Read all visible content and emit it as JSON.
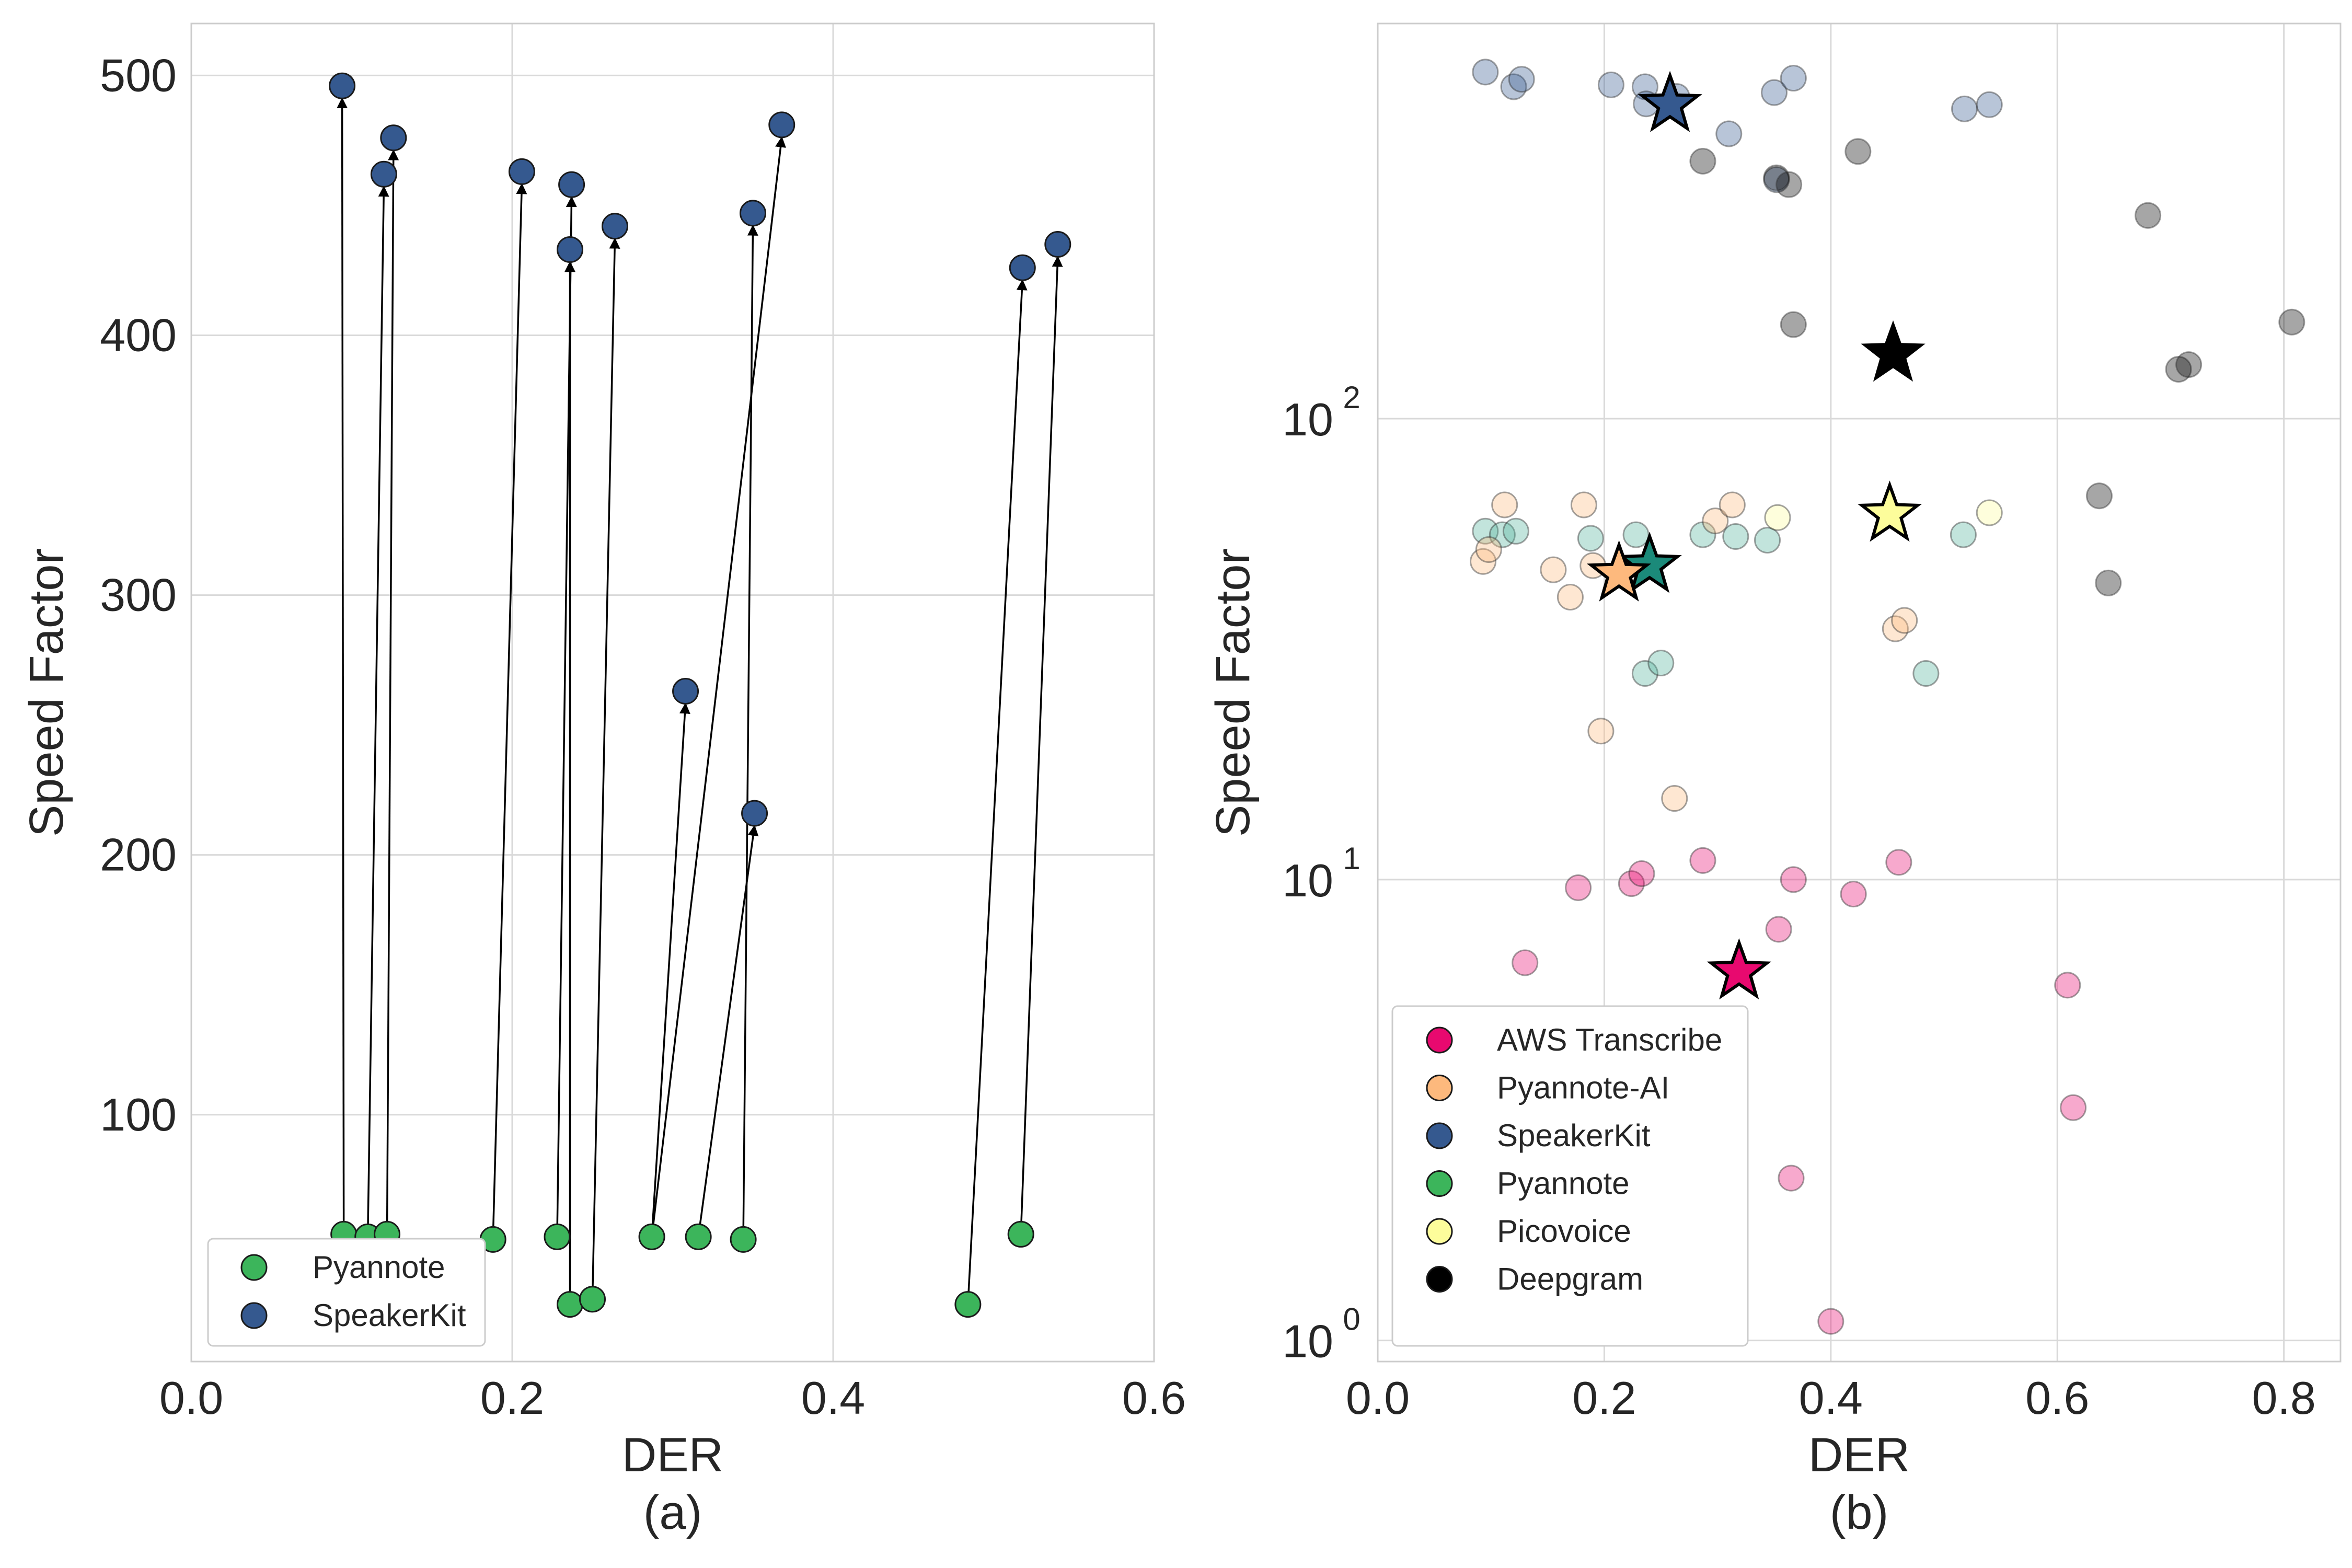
{
  "chart_data": [
    {
      "panel_label": "(a)",
      "type": "scatter",
      "xlabel": "DER",
      "ylabel": "Speed Factor",
      "xlim": [
        0.0,
        0.6
      ],
      "ylim": [
        5,
        520
      ],
      "x_ticks": [
        0.0,
        0.2,
        0.4,
        0.6
      ],
      "x_tick_labels": [
        "0.0",
        "0.2",
        "0.4",
        "0.6"
      ],
      "y_ticks": [
        100,
        200,
        300,
        400,
        500
      ],
      "y_tick_labels": [
        "100",
        "200",
        "300",
        "400",
        "500"
      ],
      "grid": true,
      "legend": {
        "position": "lower-left",
        "entries": [
          {
            "label": "Pyannote",
            "color": "#3cb55b"
          },
          {
            "label": "SpeakerKit",
            "color": "#35598f"
          }
        ]
      },
      "series": [
        {
          "name": "Pyannote",
          "color": "#3cb55b",
          "points": [
            [
              0.095,
              54
            ],
            [
              0.11,
              53
            ],
            [
              0.122,
              54
            ],
            [
              0.188,
              52
            ],
            [
              0.228,
              53
            ],
            [
              0.236,
              27
            ],
            [
              0.25,
              29
            ],
            [
              0.287,
              53
            ],
            [
              0.316,
              53
            ],
            [
              0.344,
              52
            ],
            [
              0.484,
              27
            ],
            [
              0.517,
              54
            ]
          ]
        },
        {
          "name": "SpeakerKit",
          "color": "#35598f",
          "points": [
            [
              0.094,
              496
            ],
            [
              0.12,
              462
            ],
            [
              0.126,
              476
            ],
            [
              0.206,
              463
            ],
            [
              0.236,
              433
            ],
            [
              0.237,
              458
            ],
            [
              0.264,
              442
            ],
            [
              0.308,
              263
            ],
            [
              0.35,
              447
            ],
            [
              0.351,
              216
            ],
            [
              0.368,
              481
            ],
            [
              0.518,
              426
            ],
            [
              0.54,
              435
            ]
          ]
        }
      ],
      "arrows": [
        {
          "from": [
            0.095,
            54
          ],
          "to": [
            0.094,
            496
          ]
        },
        {
          "from": [
            0.11,
            53
          ],
          "to": [
            0.12,
            462
          ]
        },
        {
          "from": [
            0.122,
            54
          ],
          "to": [
            0.126,
            476
          ]
        },
        {
          "from": [
            0.188,
            52
          ],
          "to": [
            0.206,
            463
          ]
        },
        {
          "from": [
            0.228,
            53
          ],
          "to": [
            0.237,
            458
          ]
        },
        {
          "from": [
            0.236,
            27
          ],
          "to": [
            0.236,
            433
          ]
        },
        {
          "from": [
            0.25,
            29
          ],
          "to": [
            0.264,
            442
          ]
        },
        {
          "from": [
            0.287,
            53
          ],
          "to": [
            0.308,
            263
          ]
        },
        {
          "from": [
            0.287,
            53
          ],
          "to": [
            0.368,
            481
          ]
        },
        {
          "from": [
            0.316,
            53
          ],
          "to": [
            0.351,
            216
          ]
        },
        {
          "from": [
            0.344,
            52
          ],
          "to": [
            0.35,
            447
          ]
        },
        {
          "from": [
            0.484,
            27
          ],
          "to": [
            0.518,
            426
          ]
        },
        {
          "from": [
            0.517,
            54
          ],
          "to": [
            0.54,
            435
          ]
        }
      ]
    },
    {
      "panel_label": "(b)",
      "type": "scatter",
      "xlabel": "DER",
      "ylabel": "Speed Factor",
      "yscale": "log",
      "xlim": [
        0.0,
        0.85
      ],
      "ylim": [
        0.9,
        720
      ],
      "x_ticks": [
        0.0,
        0.2,
        0.4,
        0.6,
        0.8
      ],
      "x_tick_labels": [
        "0.0",
        "0.2",
        "0.4",
        "0.6",
        "0.8"
      ],
      "y_ticks": [
        1,
        10,
        100
      ],
      "y_tick_base": "10",
      "y_tick_exponents": [
        "0",
        "1",
        "2"
      ],
      "grid": true,
      "legend": {
        "position": "lower-left",
        "entries": [
          {
            "label": "AWS Transcribe",
            "color": "#e8096f"
          },
          {
            "label": "Pyannote-AI",
            "color": "#fdb97d"
          },
          {
            "label": "SpeakerKit",
            "color": "#35598f"
          },
          {
            "label": "Pyannote",
            "color": "#3cb55b"
          },
          {
            "label": "Picovoice",
            "color": "#fdfd9b"
          },
          {
            "label": "Deepgram",
            "color": "#000000"
          }
        ]
      },
      "series": [
        {
          "name": "SpeakerKit",
          "color": "#35598f",
          "mean_color": "#35598f",
          "mean": [
            0.258,
            480
          ],
          "points": [
            [
              0.095,
              565
            ],
            [
              0.12,
              525
            ],
            [
              0.127,
              545
            ],
            [
              0.206,
              530
            ],
            [
              0.236,
              525
            ],
            [
              0.237,
              482
            ],
            [
              0.264,
              500
            ],
            [
              0.31,
              415
            ],
            [
              0.35,
              510
            ],
            [
              0.352,
              330
            ],
            [
              0.367,
              548
            ],
            [
              0.518,
              470
            ],
            [
              0.54,
              480
            ]
          ]
        },
        {
          "name": "Deepgram",
          "color": "#000000",
          "mean_color": "#000000",
          "mean": [
            0.455,
            138
          ],
          "points": [
            [
              0.287,
              362
            ],
            [
              0.352,
              333
            ],
            [
              0.363,
              322
            ],
            [
              0.367,
              160
            ],
            [
              0.424,
              380
            ],
            [
              0.68,
              276
            ],
            [
              0.707,
              128
            ],
            [
              0.716,
              131
            ],
            [
              0.807,
              162
            ],
            [
              0.637,
              68
            ],
            [
              0.645,
              44
            ]
          ]
        },
        {
          "name": "Pyannote",
          "color": "#4fb39b",
          "mean_color": "#1b8a7a",
          "mean": [
            0.24,
            48
          ],
          "points": [
            [
              0.095,
              57
            ],
            [
              0.11,
              56
            ],
            [
              0.122,
              57
            ],
            [
              0.188,
              55
            ],
            [
              0.228,
              56
            ],
            [
              0.236,
              28
            ],
            [
              0.25,
              29.5
            ],
            [
              0.287,
              56
            ],
            [
              0.316,
              55.5
            ],
            [
              0.344,
              54.5
            ],
            [
              0.484,
              28
            ],
            [
              0.517,
              56
            ]
          ]
        },
        {
          "name": "Pyannote-AI",
          "color": "#fdb97d",
          "mean_color": "#fdb97d",
          "mean": [
            0.213,
            46
          ],
          "points": [
            [
              0.093,
              49
            ],
            [
              0.098,
              52
            ],
            [
              0.112,
              65
            ],
            [
              0.155,
              47
            ],
            [
              0.17,
              41
            ],
            [
              0.182,
              65
            ],
            [
              0.19,
              48
            ],
            [
              0.197,
              21
            ],
            [
              0.262,
              15
            ],
            [
              0.298,
              60
            ],
            [
              0.313,
              65
            ],
            [
              0.457,
              35
            ],
            [
              0.465,
              36.5
            ]
          ]
        },
        {
          "name": "Picovoice",
          "color": "#fdfd9b",
          "mean_color": "#fdfd9b",
          "mean": [
            0.452,
            62
          ],
          "points": [
            [
              0.353,
              61
            ],
            [
              0.54,
              62.5
            ]
          ]
        },
        {
          "name": "AWS Transcribe",
          "color": "#e8096f",
          "mean_color": "#e8096f",
          "mean": [
            0.319,
            6.3
          ],
          "points": [
            [
              0.13,
              6.6
            ],
            [
              0.177,
              9.6
            ],
            [
              0.224,
              9.8
            ],
            [
              0.233,
              10.3
            ],
            [
              0.287,
              11
            ],
            [
              0.354,
              7.8
            ],
            [
              0.367,
              10
            ],
            [
              0.42,
              9.3
            ],
            [
              0.46,
              10.9
            ],
            [
              0.365,
              2.25
            ],
            [
              0.4,
              1.1
            ],
            [
              0.609,
              5.9
            ],
            [
              0.614,
              3.2
            ]
          ]
        }
      ]
    }
  ]
}
